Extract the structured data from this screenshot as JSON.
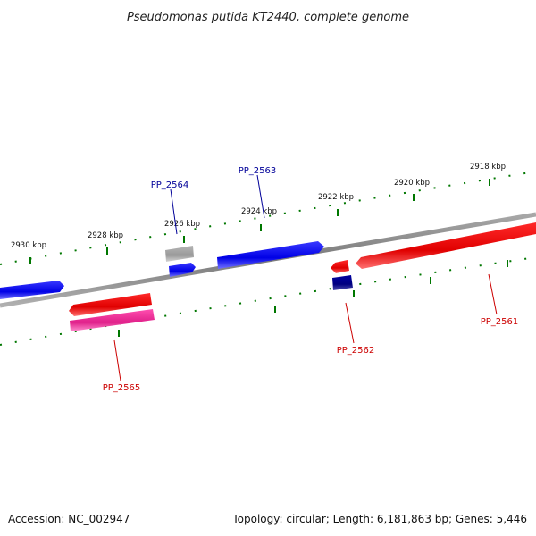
{
  "title": "Pseudomonas putida KT2440, complete genome",
  "footer": {
    "accession": "Accession: NC_002947",
    "summary": "Topology: circular; Length: 6,181,863 bp; Genes: 5,446"
  },
  "ticks": [
    {
      "label": "2930 kbp"
    },
    {
      "label": "2928 kbp"
    },
    {
      "label": "2926 kbp"
    },
    {
      "label": "2924 kbp"
    },
    {
      "label": "2922 kbp"
    },
    {
      "label": "2920 kbp"
    },
    {
      "label": "2918 kbp"
    }
  ],
  "genes": [
    {
      "name": "PP_2561",
      "strand": "reverse",
      "color": "#e60000"
    },
    {
      "name": "PP_2562",
      "strand": "reverse",
      "color": "#e60000"
    },
    {
      "name": "PP_2563",
      "strand": "forward",
      "color": "#0000ee"
    },
    {
      "name": "PP_2564",
      "strand": "forward",
      "color": "#0000ee"
    },
    {
      "name": "PP_2565",
      "strand": "reverse",
      "color": "#e60000"
    }
  ],
  "colors": {
    "forward_cds": "#0000ee",
    "reverse_cds": "#e60000",
    "rna": "#e0208a",
    "other": "#999999",
    "dark_feature": "#000080",
    "backbone": "#808080",
    "ticks": "#007700",
    "forward_label": "#000099",
    "reverse_label": "#cc0000"
  }
}
